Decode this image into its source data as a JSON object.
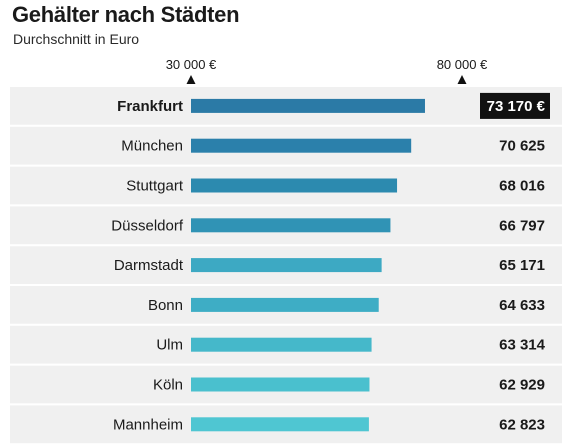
{
  "chart_data": {
    "type": "bar",
    "orientation": "horizontal",
    "title": "Gehälter nach Städten",
    "subtitle": "Durchschnitt in Euro",
    "categories": [
      "Frankfurt",
      "München",
      "Stuttgart",
      "Düsseldorf",
      "Darmstadt",
      "Bonn",
      "Ulm",
      "Köln",
      "Mannheim"
    ],
    "values": [
      73170,
      70625,
      68016,
      66797,
      65171,
      64633,
      63314,
      62929,
      62823
    ],
    "value_labels": [
      "73 170 €",
      "70 625",
      "68 016",
      "66 797",
      "65 171",
      "64 633",
      "63 314",
      "62 929",
      "62 823"
    ],
    "highlighted_category": "Frankfurt",
    "axis_markers": [
      {
        "value": 30000,
        "label": "30 000 €"
      },
      {
        "value": 80000,
        "label": "80 000 €"
      }
    ],
    "bar_colors": [
      "#2b7aa6",
      "#2b80ab",
      "#2c8aaf",
      "#3093b5",
      "#3da9c3",
      "#3eadc5",
      "#45b8ca",
      "#4ac0ce",
      "#4fc6d2"
    ],
    "highlight_color": "#111111"
  }
}
